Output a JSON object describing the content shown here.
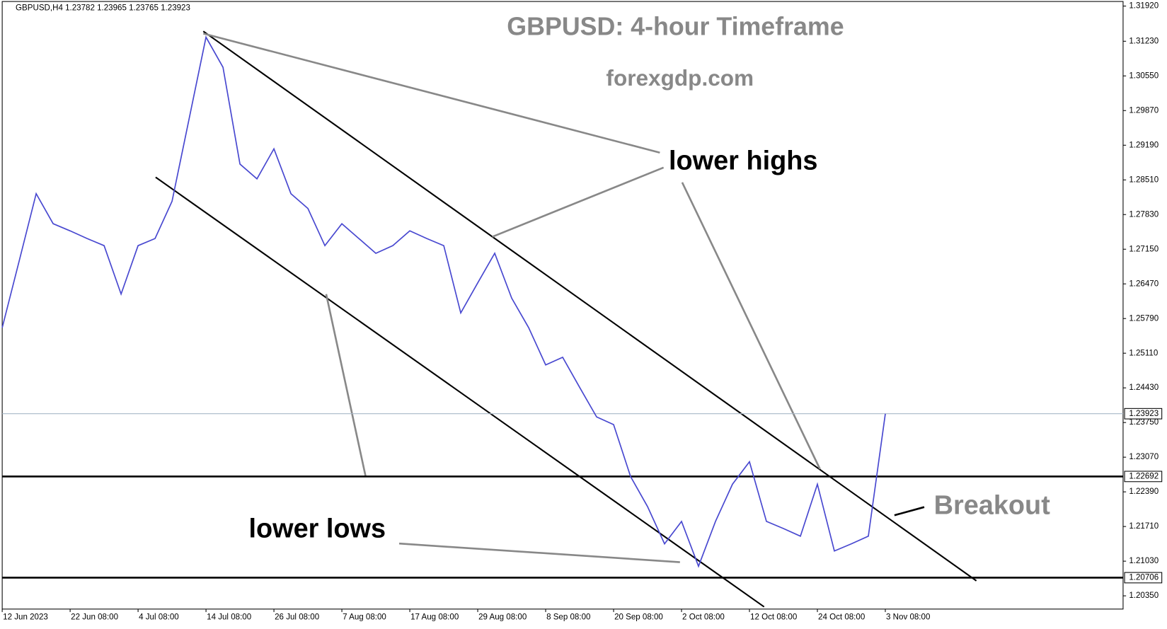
{
  "chart_data": {
    "type": "line",
    "header": "GBPUSD,H4  1.23782 1.23965 1.23765 1.23923",
    "title": "GBPUSD: 4-hour Timeframe",
    "subtitle": "forexgdp.com",
    "annotations": [
      "lower highs",
      "lower lows",
      "Breakout"
    ],
    "categories": [
      "12 Jun 2023",
      null,
      null,
      null,
      "22 Jun 08:00",
      null,
      null,
      null,
      "4 Jul 08:00",
      null,
      null,
      null,
      "14 Jul 08:00",
      null,
      null,
      null,
      "26 Jul 08:00",
      null,
      null,
      null,
      "7 Aug 08:00",
      null,
      null,
      null,
      "17 Aug 08:00",
      null,
      null,
      null,
      "29 Aug 08:00",
      null,
      null,
      null,
      "8 Sep 08:00",
      null,
      null,
      null,
      "20 Sep 08:00",
      null,
      null,
      null,
      "2 Oct 08:00",
      null,
      null,
      null,
      "12 Oct 08:00",
      null,
      null,
      null,
      "24 Oct 08:00",
      null,
      null,
      null,
      "3 Nov 08:00",
      null,
      null,
      null,
      null,
      null,
      null,
      null,
      null,
      null,
      null,
      null,
      null,
      null
    ],
    "series": [
      {
        "name": "GBPUSD",
        "color": "#4848d0",
        "values": [
          1.2561,
          1.2692,
          1.2824,
          1.2765,
          1.2751,
          1.2736,
          1.2722,
          1.2627,
          1.2722,
          1.2736,
          1.2809,
          1.297,
          1.3131,
          1.3072,
          1.2882,
          1.2853,
          1.2912,
          1.2824,
          1.2795,
          1.2722,
          1.2765,
          1.2736,
          1.2707,
          1.2722,
          1.2751,
          1.2736,
          1.2722,
          1.259,
          1.2649,
          1.2707,
          1.2619,
          1.2561,
          1.2488,
          1.2503,
          1.2444,
          1.2386,
          1.2371,
          1.2269,
          1.221,
          1.2137,
          1.2181,
          1.2093,
          1.2181,
          1.2254,
          1.2298,
          1.2181,
          1.2167,
          1.2152,
          1.2254,
          1.2123,
          1.2137,
          1.2152,
          1.2392,
          null,
          null,
          null,
          null,
          null,
          null,
          null,
          null,
          null,
          null,
          null,
          null,
          null
        ]
      }
    ],
    "ylim": [
      1.2009,
      1.3201
    ],
    "yticks": [
      {
        "value": 1.3192,
        "label": "1.31920"
      },
      {
        "value": 1.3123,
        "label": "1.31230"
      },
      {
        "value": 1.3055,
        "label": "1.30550"
      },
      {
        "value": 1.2987,
        "label": "1.29870"
      },
      {
        "value": 1.2919,
        "label": "1.29190"
      },
      {
        "value": 1.2851,
        "label": "1.28510"
      },
      {
        "value": 1.2783,
        "label": "1.27830"
      },
      {
        "value": 1.2715,
        "label": "1.27150"
      },
      {
        "value": 1.2647,
        "label": "1.26470"
      },
      {
        "value": 1.2579,
        "label": "1.25790"
      },
      {
        "value": 1.2511,
        "label": "1.25110"
      },
      {
        "value": 1.2443,
        "label": "1.24430"
      },
      {
        "value": 1.2375,
        "label": "1.23750"
      },
      {
        "value": 1.2307,
        "label": "1.23070"
      },
      {
        "value": 1.2239,
        "label": "1.22390"
      },
      {
        "value": 1.2171,
        "label": "1.21710"
      },
      {
        "value": 1.2103,
        "label": "1.21030"
      },
      {
        "value": 1.2035,
        "label": "1.20350"
      }
    ],
    "levels": [
      1.22692,
      1.20706
    ],
    "current_price": 1.23923,
    "grid": false
  }
}
